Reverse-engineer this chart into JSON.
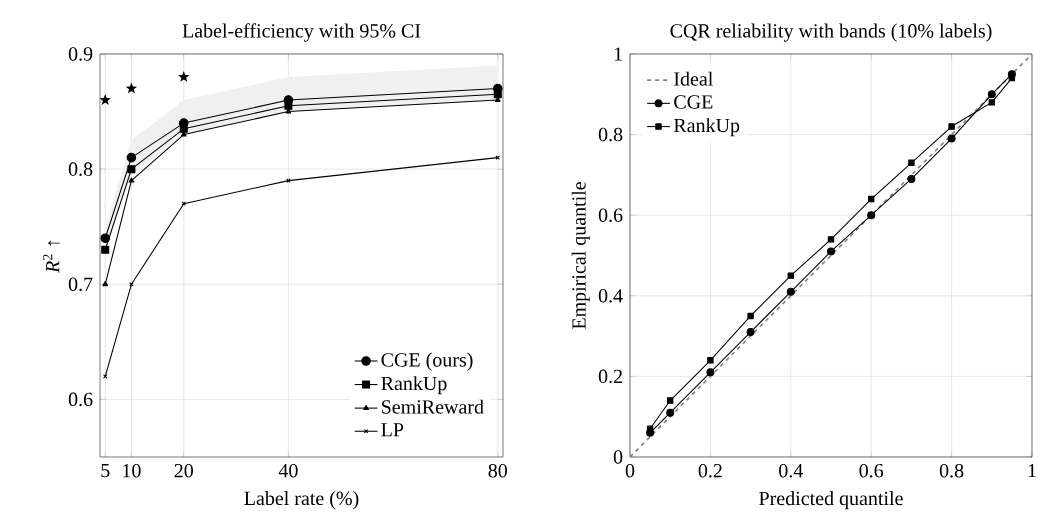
{
  "chart_data": [
    {
      "type": "line",
      "title": "Label-efficiency with 95% CI",
      "xlabel": "Label rate (%)",
      "ylabel": "*R*$^{2}$ ↑",
      "x": [
        5,
        10,
        20,
        40,
        80
      ],
      "xlim": [
        4,
        81
      ],
      "ylim": [
        0.55,
        0.9
      ],
      "xticks": [
        5,
        10,
        20,
        40,
        80
      ],
      "yticks": [
        0.6,
        0.7,
        0.8,
        0.9
      ],
      "grid": true,
      "legend": "bottom right",
      "series": [
        {
          "name": "CGE (ours)",
          "color": "#000000",
          "marker": "circle",
          "values": [
            0.74,
            0.81,
            0.84,
            0.86,
            0.87
          ],
          "lower": [
            0.73,
            0.795,
            0.83,
            0.85,
            0.86
          ],
          "upper": [
            0.75,
            0.825,
            0.86,
            0.88,
            0.89
          ]
        },
        {
          "name": "RankUp",
          "color": "#000000",
          "marker": "square",
          "values": [
            0.73,
            0.8,
            0.835,
            0.855,
            0.865
          ]
        },
        {
          "name": "SemiReward",
          "color": "#000000",
          "marker": "triangle",
          "values": [
            0.7,
            0.79,
            0.83,
            0.85,
            0.86
          ]
        },
        {
          "name": "LP",
          "color": "#000000",
          "marker": "cross",
          "values": [
            0.62,
            0.7,
            0.77,
            0.79,
            0.81
          ]
        },
        {
          "type": "scatter",
          "color": "#000000",
          "marker": "star",
          "x": [
            5,
            10,
            20
          ],
          "values": [
            0.86,
            0.87,
            0.88
          ]
        }
      ]
    },
    {
      "type": "line",
      "title": "CQR reliability with bands (10% labels)",
      "xlabel": "Predicted quantile",
      "ylabel": "Empirical quantile",
      "xlim": [
        0,
        1
      ],
      "ylim": [
        0,
        1
      ],
      "xticks": [
        0,
        0.2,
        0.4,
        0.6,
        0.8,
        1
      ],
      "yticks": [
        0,
        0.2,
        0.4,
        0.6,
        0.8,
        1
      ],
      "grid": true,
      "legend": "top left",
      "series": [
        {
          "name": "Ideal",
          "color": "#808080",
          "marker": "none",
          "line_style": "dashed",
          "x": [
            0,
            1
          ],
          "values": [
            0,
            1
          ]
        },
        {
          "name": "CGE",
          "color": "#000000",
          "marker": "circle",
          "x": [
            0.05,
            0.1,
            0.2,
            0.3,
            0.4,
            0.5,
            0.6,
            0.7,
            0.8,
            0.9,
            0.95
          ],
          "values": [
            0.06,
            0.11,
            0.21,
            0.31,
            0.41,
            0.51,
            0.6,
            0.69,
            0.79,
            0.9,
            0.95
          ]
        },
        {
          "name": "RankUp",
          "color": "#000000",
          "marker": "square",
          "x": [
            0.05,
            0.1,
            0.2,
            0.3,
            0.4,
            0.5,
            0.6,
            0.7,
            0.8,
            0.9,
            0.95
          ],
          "values": [
            0.07,
            0.14,
            0.24,
            0.35,
            0.45,
            0.54,
            0.64,
            0.73,
            0.82,
            0.88,
            0.94
          ]
        }
      ]
    }
  ]
}
